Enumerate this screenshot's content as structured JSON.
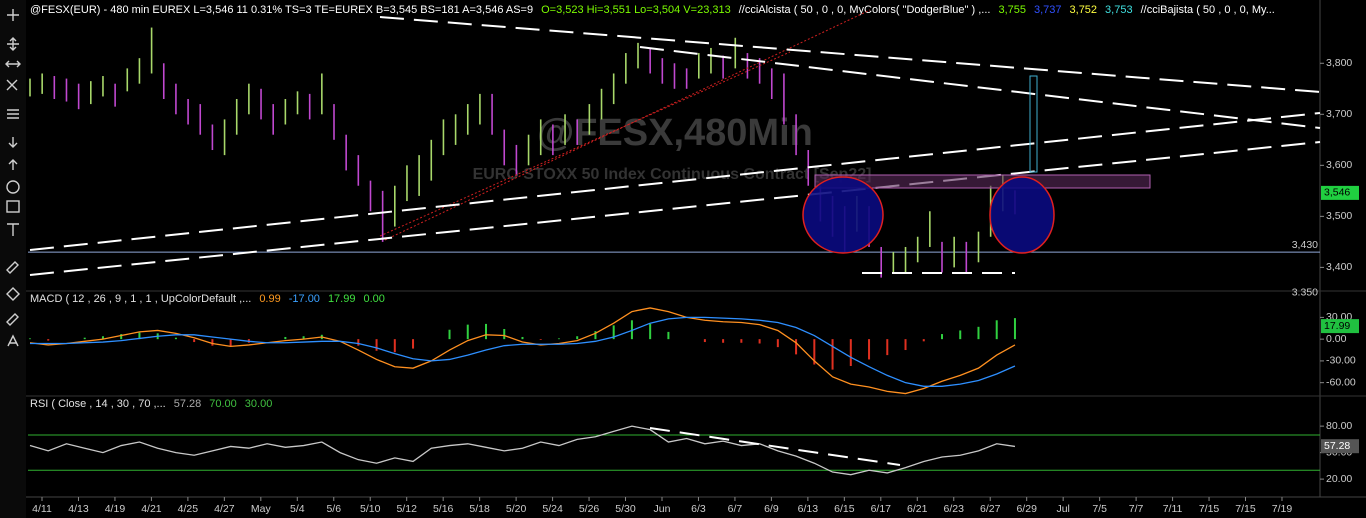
{
  "chart_data": [
    {
      "type": "range",
      "title_parts": [
        {
          "text": "@FESX(EUR) - 480 min  EUREX  L=3,546  11  0.31%  TS=3  TE=EUREX  B=3,545  BS=181  A=3,546  AS=9",
          "color": "#ffffff"
        },
        {
          "text": "O=3,523  Hi=3,551  Lo=3,504  V=23,313",
          "color": "#7cfc00"
        },
        {
          "text": "//cciAlcista ( 50 , 0 , 0, MyColors( \"DodgerBlue\" ) ,...",
          "color": "#ffffff"
        },
        {
          "text": "3,755",
          "color": "#7cfc00"
        },
        {
          "text": "3,737",
          "color": "#3050ff"
        },
        {
          "text": "3,752",
          "color": "#ffff40"
        },
        {
          "text": "3,753",
          "color": "#40e0e0"
        },
        {
          "text": "//cciBajista ( 50 , 0 , 0, My...",
          "color": "#ffffff"
        }
      ],
      "watermark": [
        "@FESX,480Min",
        "EURO STOXX 50 Index Continuous Contract [Sep22]"
      ],
      "highs": [
        3770,
        3780,
        3775,
        3770,
        3760,
        3765,
        3775,
        3760,
        3790,
        3810,
        3870,
        3800,
        3760,
        3730,
        3720,
        3680,
        3690,
        3730,
        3760,
        3750,
        3720,
        3730,
        3745,
        3740,
        3780,
        3720,
        3660,
        3620,
        3570,
        3550,
        3560,
        3600,
        3620,
        3650,
        3690,
        3700,
        3720,
        3740,
        3740,
        3670,
        3640,
        3660,
        3690,
        3680,
        3700,
        3690,
        3720,
        3750,
        3780,
        3820,
        3840,
        3830,
        3810,
        3800,
        3790,
        3820,
        3830,
        3815,
        3850,
        3820,
        3810,
        3790,
        3780,
        3700,
        3630,
        3560,
        3540,
        3520,
        3540,
        3520,
        3440,
        3430,
        3440,
        3460,
        3510,
        3450,
        3460,
        3450,
        3470,
        3560,
        3580,
        3551
      ],
      "lows": [
        3735,
        3740,
        3730,
        3725,
        3710,
        3720,
        3735,
        3715,
        3745,
        3760,
        3780,
        3730,
        3700,
        3680,
        3660,
        3630,
        3620,
        3660,
        3700,
        3690,
        3660,
        3680,
        3700,
        3690,
        3700,
        3650,
        3590,
        3560,
        3510,
        3450,
        3480,
        3530,
        3540,
        3570,
        3620,
        3640,
        3660,
        3680,
        3660,
        3600,
        3580,
        3600,
        3620,
        3620,
        3640,
        3640,
        3660,
        3690,
        3720,
        3760,
        3790,
        3780,
        3760,
        3750,
        3750,
        3770,
        3780,
        3770,
        3790,
        3770,
        3760,
        3730,
        3680,
        3620,
        3560,
        3490,
        3460,
        3430,
        3470,
        3440,
        3380,
        3390,
        3390,
        3410,
        3440,
        3390,
        3400,
        3390,
        3410,
        3460,
        3510,
        3504
      ],
      "up_color": "#a8d86a",
      "down_color": "#c048d0",
      "ylim": [
        3340,
        3924
      ],
      "yticks": [
        {
          "value": 3800,
          "label": "3,800"
        },
        {
          "value": 3700,
          "label": "3,700"
        },
        {
          "value": 3600,
          "label": "3,600"
        },
        {
          "value": 3500,
          "label": "3,500"
        },
        {
          "value": 3400,
          "label": "3,400"
        }
      ],
      "hline": {
        "value": 3430,
        "label": "3,430"
      },
      "extra_label": {
        "value": 3350,
        "label": "3.350"
      },
      "last": {
        "value": 3546,
        "label": "3,546"
      }
    },
    {
      "type": "macd",
      "title": "MACD ( 12 , 26 , 9 , 1 , 1 , UpColorDefault ,...",
      "readouts": [
        {
          "text": "0.99",
          "color": "#ff9a20"
        },
        {
          "text": "-17.00",
          "color": "#3aa0ff"
        },
        {
          "text": "17.99",
          "color": "#40e040"
        },
        {
          "text": "0.00",
          "color": "#40e040"
        }
      ],
      "series": [
        {
          "color": "#ff9020",
          "values": [
            -5,
            -8,
            -6,
            -3,
            0,
            5,
            10,
            12,
            8,
            2,
            -6,
            -10,
            -8,
            -5,
            -2,
            0,
            3,
            -3,
            -15,
            -28,
            -38,
            -40,
            -30,
            -15,
            -2,
            6,
            5,
            -4,
            -8,
            -6,
            -2,
            8,
            22,
            38,
            43,
            38,
            30,
            26,
            24,
            23,
            20,
            12,
            -5,
            -30,
            -52,
            -62,
            -66,
            -72,
            -75,
            -68,
            -58,
            -50,
            -40,
            -22,
            -8
          ]
        },
        {
          "color": "#2e8fff",
          "values": [
            -6,
            -6,
            -6,
            -5,
            -4,
            -2,
            1,
            4,
            6,
            6,
            3,
            0,
            -3,
            -5,
            -5,
            -4,
            -3,
            -3,
            -6,
            -12,
            -20,
            -27,
            -30,
            -28,
            -22,
            -15,
            -9,
            -7,
            -7,
            -7,
            -6,
            -3,
            3,
            12,
            22,
            28,
            30,
            30,
            29,
            28,
            26,
            23,
            16,
            5,
            -10,
            -25,
            -38,
            -50,
            -60,
            -65,
            -65,
            -62,
            -57,
            -48,
            -37
          ]
        }
      ],
      "histogram": [
        1,
        -2,
        0,
        2,
        4,
        7,
        9,
        8,
        2,
        -4,
        -9,
        -10,
        -5,
        0,
        3,
        4,
        6,
        0,
        -9,
        -16,
        -18,
        -13,
        0,
        13,
        20,
        21,
        14,
        3,
        -1,
        1,
        4,
        11,
        19,
        26,
        21,
        10,
        0,
        -4,
        -5,
        -5,
        -6,
        -11,
        -21,
        -35,
        -42,
        -37,
        -28,
        -22,
        -15,
        -3,
        7,
        12,
        17,
        26,
        29
      ],
      "hist_up": "#30d040",
      "hist_down": "#e03020",
      "ylim": [
        -77,
        65
      ],
      "yticks": [
        {
          "value": 30,
          "label": "30.00"
        },
        {
          "value": 0,
          "label": "0.00"
        },
        {
          "value": -30,
          "label": "-30.00"
        },
        {
          "value": -60,
          "label": "-60.00"
        }
      ],
      "last": {
        "value": 17.99,
        "label": "17.99"
      }
    },
    {
      "type": "rsi",
      "title": "RSI ( Close , 14 , 30 , 70 ,...",
      "readouts": [
        {
          "text": "57.28",
          "color": "#aaaaaa"
        },
        {
          "text": "70.00",
          "color": "#40c040"
        },
        {
          "text": "30.00",
          "color": "#40c040"
        }
      ],
      "series": [
        {
          "color": "#c8c8c8",
          "values": [
            58,
            52,
            60,
            55,
            50,
            58,
            62,
            55,
            50,
            47,
            52,
            57,
            55,
            60,
            56,
            58,
            62,
            50,
            42,
            38,
            44,
            40,
            55,
            58,
            60,
            56,
            52,
            55,
            62,
            58,
            65,
            68,
            74,
            80,
            76,
            62,
            66,
            60,
            63,
            58,
            60,
            52,
            46,
            38,
            28,
            25,
            30,
            27,
            33,
            40,
            45,
            47,
            52,
            60,
            57
          ]
        }
      ],
      "levels": [
        70,
        30
      ],
      "level_color": "#30b030",
      "ylim": [
        2,
        113
      ],
      "yticks": [
        {
          "value": 80,
          "label": "80.00"
        },
        {
          "value": 50,
          "label": "50.00"
        },
        {
          "value": 20,
          "label": "20.00"
        }
      ],
      "last": {
        "value": 57.28,
        "label": "57.28"
      }
    }
  ],
  "x_axis": {
    "categories": [
      "4/11",
      "4/13",
      "4/19",
      "4/21",
      "4/25",
      "4/27",
      "May",
      "5/4",
      "5/6",
      "5/10",
      "5/12",
      "5/16",
      "5/18",
      "5/20",
      "5/24",
      "5/26",
      "5/30",
      "Jun",
      "6/3",
      "6/7",
      "6/9",
      "6/13",
      "6/15",
      "6/17",
      "6/21",
      "6/23",
      "6/27",
      "6/29",
      "Jul",
      "7/5",
      "7/7",
      "7/11",
      "7/15",
      "7/15",
      "7/19"
    ]
  }
}
